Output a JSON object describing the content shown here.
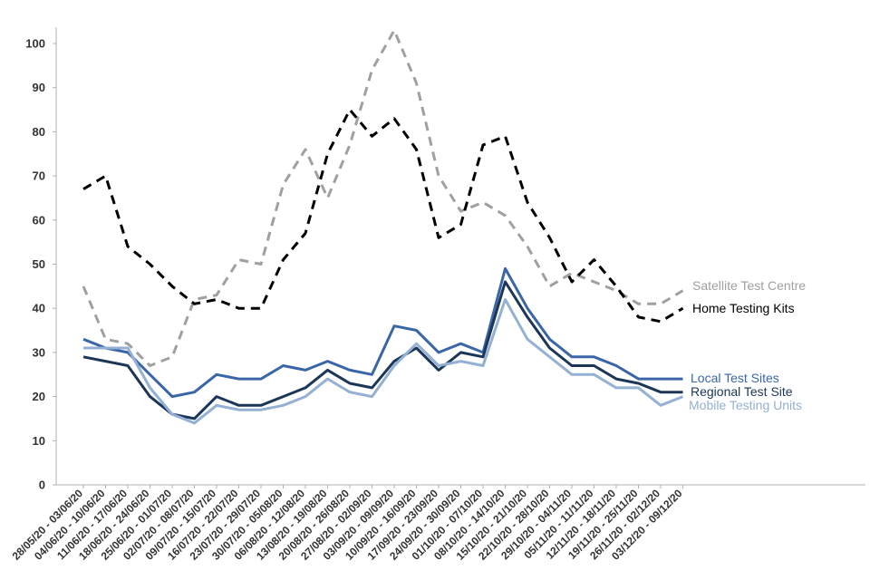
{
  "chart_data": {
    "type": "line",
    "title": "",
    "xlabel": "",
    "ylabel": "",
    "ylim": [
      0,
      100
    ],
    "yticks": [
      0,
      10,
      20,
      30,
      40,
      50,
      60,
      70,
      80,
      90,
      100
    ],
    "grid": false,
    "categories": [
      "28/05/20 - 03/06/20",
      "04/06/20 - 10/06/20",
      "11/06/20 - 17/06/20",
      "18/06/20 - 24/06/20",
      "25/06/20 - 01/07/20",
      "02/07/20 - 08/07/20",
      "09/07/20 - 15/07/20",
      "16/07/20 - 22/07/20",
      "23/07/20 - 29/07/20",
      "30/07/20 - 05/08/20",
      "06/08/20 - 12/08/20",
      "13/08/20 - 19/08/20",
      "20/08/20 - 26/08/20",
      "27/08/20 - 02/09/20",
      "03/09/20 - 09/09/20",
      "10/09/20 - 16/09/20",
      "17/09/20 - 23/09/20",
      "24/09/20 - 30/09/20",
      "01/10/20 - 07/10/20",
      "08/10/20 - 14/10/20",
      "15/10/20 - 21/10/20",
      "22/10/20 - 28/10/20",
      "29/10/20 - 04/11/20",
      "05/11/20 - 11/11/20",
      "12/11/20 - 18/11/20",
      "19/11/20 - 25/11/20",
      "26/11/20 - 02/12/20",
      "03/12/20 - 09/12/20"
    ],
    "series": [
      {
        "name": "Satellite Test Centre",
        "color": "#a0a0a0",
        "dashed": true,
        "values": [
          45,
          33,
          32,
          27,
          29,
          42,
          43,
          51,
          50,
          68,
          76,
          65,
          77,
          94,
          103,
          91,
          70,
          62,
          64,
          61,
          54,
          45,
          48,
          46,
          44,
          41,
          41,
          44
        ]
      },
      {
        "name": "Home Testing Kits",
        "color": "#000000",
        "dashed": true,
        "values": [
          67,
          70,
          54,
          50,
          45,
          41,
          42,
          40,
          40,
          51,
          57,
          75,
          85,
          79,
          83,
          76,
          56,
          59,
          77,
          79,
          64,
          56,
          46,
          51,
          45,
          38,
          37,
          40
        ]
      },
      {
        "name": "Local Test Sites",
        "color": "#3a66a8",
        "dashed": false,
        "values": [
          33,
          31,
          30,
          25,
          20,
          21,
          25,
          24,
          24,
          27,
          26,
          28,
          26,
          25,
          36,
          35,
          30,
          32,
          30,
          49,
          40,
          33,
          29,
          29,
          27,
          24,
          24,
          24
        ]
      },
      {
        "name": "Regional Test Site",
        "color": "#1c3658",
        "dashed": false,
        "values": [
          29,
          28,
          27,
          20,
          16,
          15,
          20,
          18,
          18,
          20,
          22,
          26,
          23,
          22,
          28,
          31,
          26,
          30,
          29,
          46,
          38,
          31,
          27,
          27,
          24,
          23,
          21,
          21
        ]
      },
      {
        "name": "Mobile Testing Units",
        "color": "#94b1d3",
        "dashed": false,
        "values": [
          31,
          31,
          31,
          22,
          16,
          14,
          18,
          17,
          17,
          18,
          20,
          24,
          21,
          20,
          27,
          32,
          27,
          28,
          27,
          42,
          33,
          29,
          25,
          25,
          22,
          22,
          18,
          20
        ]
      }
    ]
  }
}
